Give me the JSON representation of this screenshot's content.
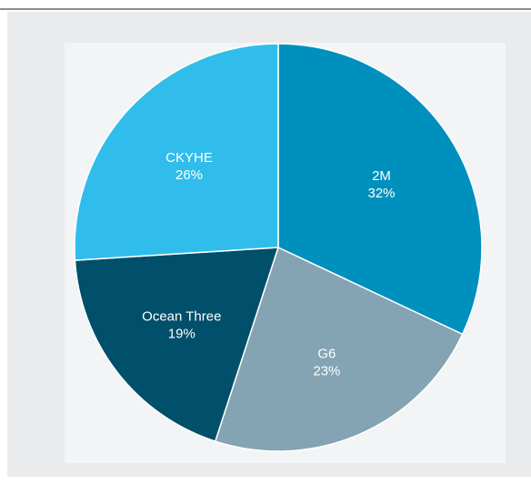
{
  "chart_data": {
    "type": "pie",
    "slices": [
      {
        "label": "2M",
        "value": 32,
        "value_label": "32%",
        "color": "#0090bd"
      },
      {
        "label": "G6",
        "value": 23,
        "value_label": "23%",
        "color": "#84a3b3"
      },
      {
        "label": "Ocean Three",
        "value": 19,
        "value_label": "19%",
        "color": "#004f6b"
      },
      {
        "label": "CKYHE",
        "value": 26,
        "value_label": "26%",
        "color": "#31bdeb"
      }
    ],
    "start_angle": "12 o'clock",
    "direction": "clockwise",
    "legend": "none",
    "slice_border_color": "#ffffff",
    "label_color": "#ffffff"
  }
}
